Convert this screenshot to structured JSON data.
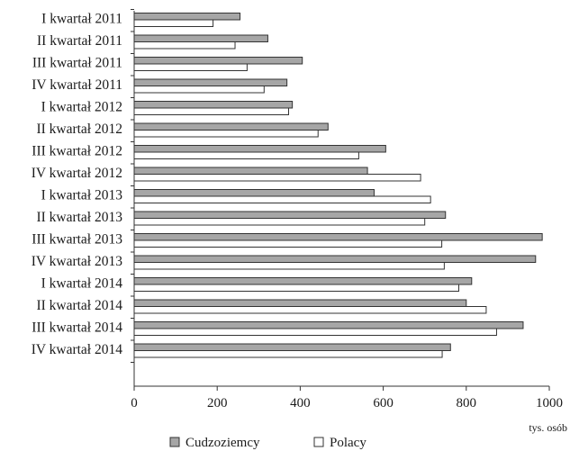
{
  "chart_data": {
    "type": "bar",
    "orientation": "horizontal",
    "categories": [
      "I kwartał 2011",
      "II kwartał 2011",
      "III kwartał 2011",
      "IV kwartał 2011",
      "I kwartał 2012",
      "II kwartał 2012",
      "III kwartał 2012",
      "IV kwartał 2012",
      "I kwartał 2013",
      "II kwartał 2013",
      "III kwartał 2013",
      "IV kwartał 2013",
      "I kwartał 2014",
      "II kwartał 2014",
      "III kwartał 2014",
      "IV kwartał 2014"
    ],
    "series": [
      {
        "name": "Cudzoziemcy",
        "color": "#a6a6a6",
        "values": [
          255,
          322,
          405,
          368,
          381,
          467,
          606,
          562,
          578,
          750,
          983,
          967,
          813,
          800,
          937,
          762
        ]
      },
      {
        "name": "Polacy",
        "color": "#ffffff",
        "values": [
          190,
          243,
          272,
          313,
          372,
          443,
          541,
          690,
          714,
          700,
          741,
          747,
          782,
          848,
          873,
          742
        ]
      }
    ],
    "xlim": [
      0,
      1000
    ],
    "x_ticks": [
      "0",
      "200",
      "400",
      "600",
      "800",
      "1000"
    ],
    "x_tick_values": [
      0,
      200,
      400,
      600,
      800,
      1000
    ],
    "unit": "tys. osób",
    "grid": false,
    "legend_position": "bottom"
  }
}
